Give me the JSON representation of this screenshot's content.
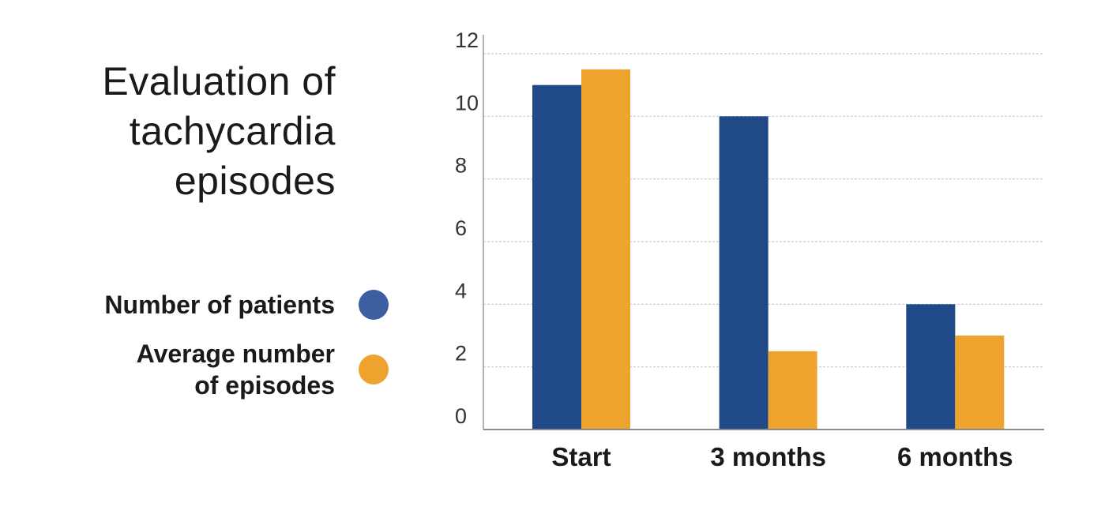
{
  "title_lines": [
    "Evaluation of",
    "tachycardia",
    "episodes"
  ],
  "legend": [
    {
      "label_lines": [
        "Number of patients"
      ],
      "color": "#1f4a87",
      "swatch_color": "#3d5ea0"
    },
    {
      "label_lines": [
        "Average number",
        "of episodes"
      ],
      "color": "#eea32e",
      "swatch_color": "#eea32e"
    }
  ],
  "chart_data": {
    "type": "bar",
    "title": "Evaluation of tachycardia episodes",
    "categories": [
      "Start",
      "3 months",
      "6 months"
    ],
    "series": [
      {
        "name": "Number of patients",
        "values": [
          11,
          10,
          4
        ],
        "color": "#1f4a87"
      },
      {
        "name": "Average number of episodes",
        "values": [
          11.5,
          2.5,
          3
        ],
        "color": "#eea32e"
      }
    ],
    "ylim": [
      0,
      12
    ],
    "yticks": [
      0,
      2,
      4,
      6,
      8,
      10,
      12
    ],
    "grid": true,
    "legend_position": "left"
  }
}
